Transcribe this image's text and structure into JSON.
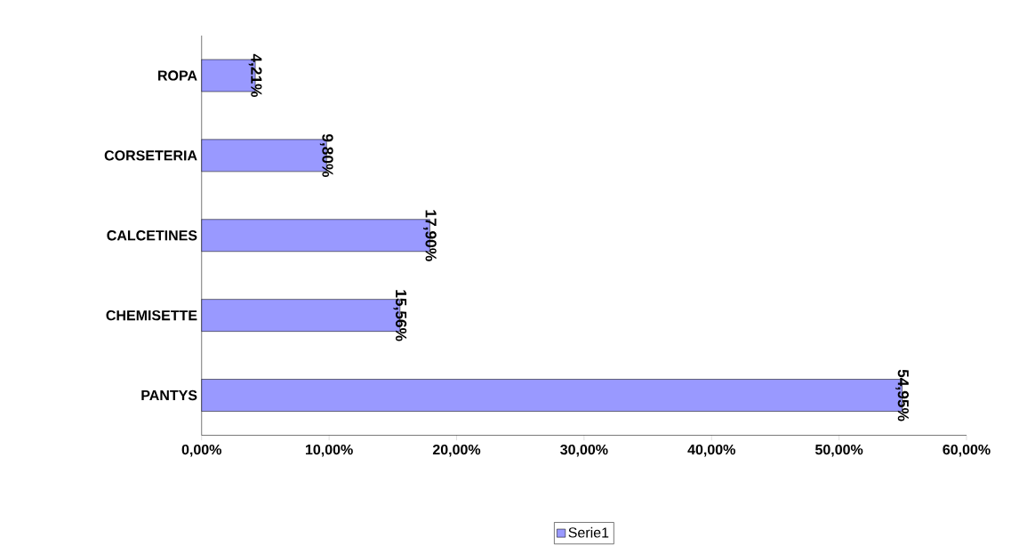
{
  "chart_data": {
    "type": "bar",
    "orientation": "horizontal",
    "categories": [
      "ROPA",
      "CORSETERIA",
      "CALCETINES",
      "CHEMISETTE",
      "PANTYS"
    ],
    "series": [
      {
        "name": "Serie1",
        "color": "#9999ff",
        "values": [
          4.21,
          9.8,
          17.9,
          15.56,
          54.95
        ],
        "value_labels": [
          "4,21%",
          "9,80%",
          "17,90%",
          "15,56%",
          "54,95%"
        ]
      }
    ],
    "xlim": [
      0,
      60
    ],
    "xticks": [
      {
        "value": 0,
        "label": "0,00%"
      },
      {
        "value": 10,
        "label": "10,00%"
      },
      {
        "value": 20,
        "label": "20,00%"
      },
      {
        "value": 30,
        "label": "30,00%"
      },
      {
        "value": 40,
        "label": "40,00%"
      },
      {
        "value": 50,
        "label": "50,00%"
      },
      {
        "value": 60,
        "label": "60,00%"
      }
    ],
    "legend": "bottom",
    "grid": false
  }
}
